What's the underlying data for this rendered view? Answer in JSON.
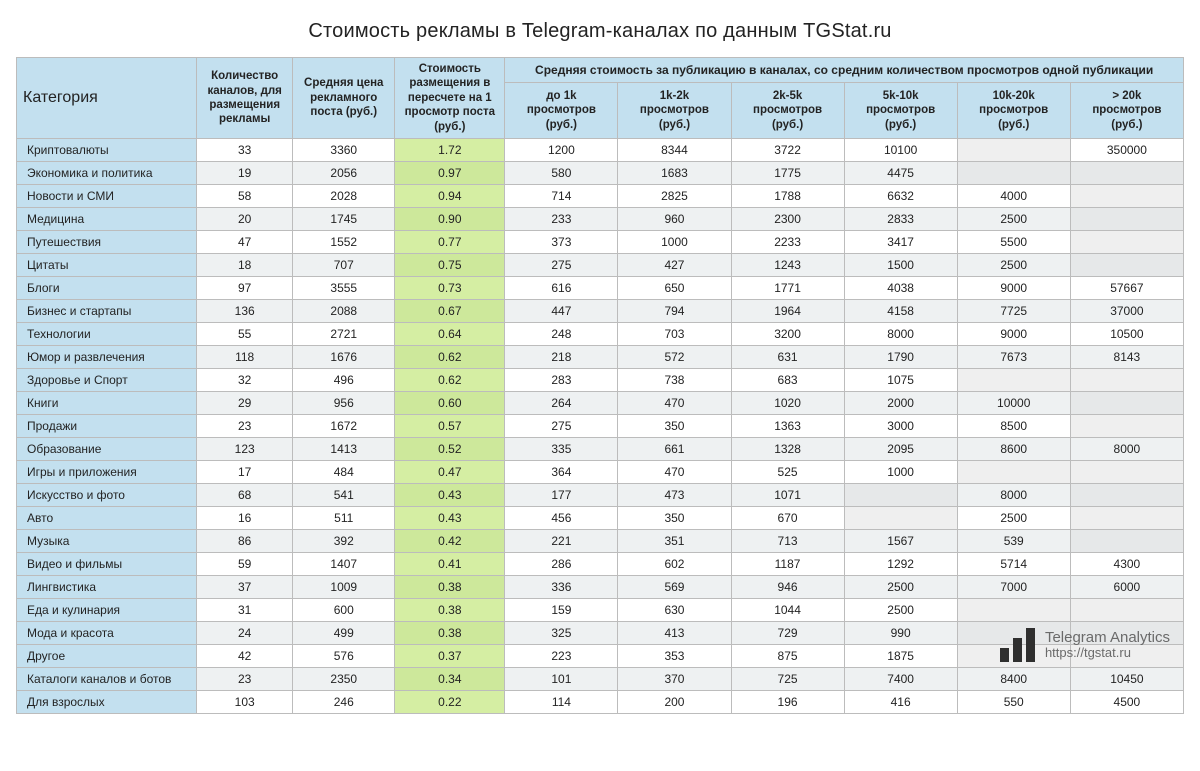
{
  "title": "Стоимость рекламы в Telegram-каналах по данным TGStat.ru",
  "header": {
    "category": "Категория",
    "col1": "Количество каналов, для размещения рекламы",
    "col2": "Средняя цена рекламного поста (руб.)",
    "col3": "Стоимость размещения в пересчете на 1 просмотр поста (руб.)",
    "group": "Средняя стоимость за публикацию в каналах, со средним количеством просмотров одной публикации",
    "views": [
      "до 1k просмотров (руб.)",
      "1k-2k просмотров (руб.)",
      "2k-5k просмотров (руб.)",
      "5k-10k просмотров (руб.)",
      "10k-20k просмотров (руб.)",
      "> 20k просмотров (руб.)"
    ]
  },
  "rows": [
    {
      "cat": "Криптовалюты",
      "count": "33",
      "avg": "3360",
      "perview": "1.72",
      "v": [
        "1200",
        "8344",
        "3722",
        "10100",
        "",
        "350000"
      ]
    },
    {
      "cat": "Экономика и политика",
      "count": "19",
      "avg": "2056",
      "perview": "0.97",
      "v": [
        "580",
        "1683",
        "1775",
        "4475",
        "",
        ""
      ]
    },
    {
      "cat": "Новости и СМИ",
      "count": "58",
      "avg": "2028",
      "perview": "0.94",
      "v": [
        "714",
        "2825",
        "1788",
        "6632",
        "4000",
        ""
      ]
    },
    {
      "cat": "Медицина",
      "count": "20",
      "avg": "1745",
      "perview": "0.90",
      "v": [
        "233",
        "960",
        "2300",
        "2833",
        "2500",
        ""
      ]
    },
    {
      "cat": "Путешествия",
      "count": "47",
      "avg": "1552",
      "perview": "0.77",
      "v": [
        "373",
        "1000",
        "2233",
        "3417",
        "5500",
        ""
      ]
    },
    {
      "cat": "Цитаты",
      "count": "18",
      "avg": "707",
      "perview": "0.75",
      "v": [
        "275",
        "427",
        "1243",
        "1500",
        "2500",
        ""
      ]
    },
    {
      "cat": "Блоги",
      "count": "97",
      "avg": "3555",
      "perview": "0.73",
      "v": [
        "616",
        "650",
        "1771",
        "4038",
        "9000",
        "57667"
      ]
    },
    {
      "cat": "Бизнес и стартапы",
      "count": "136",
      "avg": "2088",
      "perview": "0.67",
      "v": [
        "447",
        "794",
        "1964",
        "4158",
        "7725",
        "37000"
      ]
    },
    {
      "cat": "Технологии",
      "count": "55",
      "avg": "2721",
      "perview": "0.64",
      "v": [
        "248",
        "703",
        "3200",
        "8000",
        "9000",
        "10500"
      ]
    },
    {
      "cat": "Юмор и развлечения",
      "count": "118",
      "avg": "1676",
      "perview": "0.62",
      "v": [
        "218",
        "572",
        "631",
        "1790",
        "7673",
        "8143"
      ]
    },
    {
      "cat": "Здоровье и Спорт",
      "count": "32",
      "avg": "496",
      "perview": "0.62",
      "v": [
        "283",
        "738",
        "683",
        "1075",
        "",
        ""
      ]
    },
    {
      "cat": "Книги",
      "count": "29",
      "avg": "956",
      "perview": "0.60",
      "v": [
        "264",
        "470",
        "1020",
        "2000",
        "10000",
        ""
      ]
    },
    {
      "cat": "Продажи",
      "count": "23",
      "avg": "1672",
      "perview": "0.57",
      "v": [
        "275",
        "350",
        "1363",
        "3000",
        "8500",
        ""
      ]
    },
    {
      "cat": "Образование",
      "count": "123",
      "avg": "1413",
      "perview": "0.52",
      "v": [
        "335",
        "661",
        "1328",
        "2095",
        "8600",
        "8000"
      ]
    },
    {
      "cat": "Игры и приложения",
      "count": "17",
      "avg": "484",
      "perview": "0.47",
      "v": [
        "364",
        "470",
        "525",
        "1000",
        "",
        ""
      ]
    },
    {
      "cat": "Искусство и фото",
      "count": "68",
      "avg": "541",
      "perview": "0.43",
      "v": [
        "177",
        "473",
        "1071",
        "",
        "8000",
        ""
      ]
    },
    {
      "cat": "Авто",
      "count": "16",
      "avg": "511",
      "perview": "0.43",
      "v": [
        "456",
        "350",
        "670",
        "",
        "2500",
        ""
      ]
    },
    {
      "cat": "Музыка",
      "count": "86",
      "avg": "392",
      "perview": "0.42",
      "v": [
        "221",
        "351",
        "713",
        "1567",
        "539",
        ""
      ]
    },
    {
      "cat": "Видео и фильмы",
      "count": "59",
      "avg": "1407",
      "perview": "0.41",
      "v": [
        "286",
        "602",
        "1187",
        "1292",
        "5714",
        "4300"
      ]
    },
    {
      "cat": "Лингвистика",
      "count": "37",
      "avg": "1009",
      "perview": "0.38",
      "v": [
        "336",
        "569",
        "946",
        "2500",
        "7000",
        "6000"
      ]
    },
    {
      "cat": "Еда и кулинария",
      "count": "31",
      "avg": "600",
      "perview": "0.38",
      "v": [
        "159",
        "630",
        "1044",
        "2500",
        "",
        ""
      ]
    },
    {
      "cat": "Мода и красота",
      "count": "24",
      "avg": "499",
      "perview": "0.38",
      "v": [
        "325",
        "413",
        "729",
        "990",
        "",
        ""
      ]
    },
    {
      "cat": "Другое",
      "count": "42",
      "avg": "576",
      "perview": "0.37",
      "v": [
        "223",
        "353",
        "875",
        "1875",
        "",
        ""
      ]
    },
    {
      "cat": "Каталоги каналов и ботов",
      "count": "23",
      "avg": "2350",
      "perview": "0.34",
      "v": [
        "101",
        "370",
        "725",
        "7400",
        "8400",
        "10450"
      ]
    },
    {
      "cat": "Для взрослых",
      "count": "103",
      "avg": "246",
      "perview": "0.22",
      "v": [
        "114",
        "200",
        "196",
        "416",
        "550",
        "4500"
      ]
    }
  ],
  "brand": {
    "line1": "Telegram Analytics",
    "line2": "https://tgstat.ru"
  },
  "colors": {
    "header_bg": "#c3e0ef",
    "highlight_bg": "#d5eea3",
    "empty_bg": "#efefef",
    "border": "#bcbcbc",
    "stripe": "#eef1f2"
  }
}
